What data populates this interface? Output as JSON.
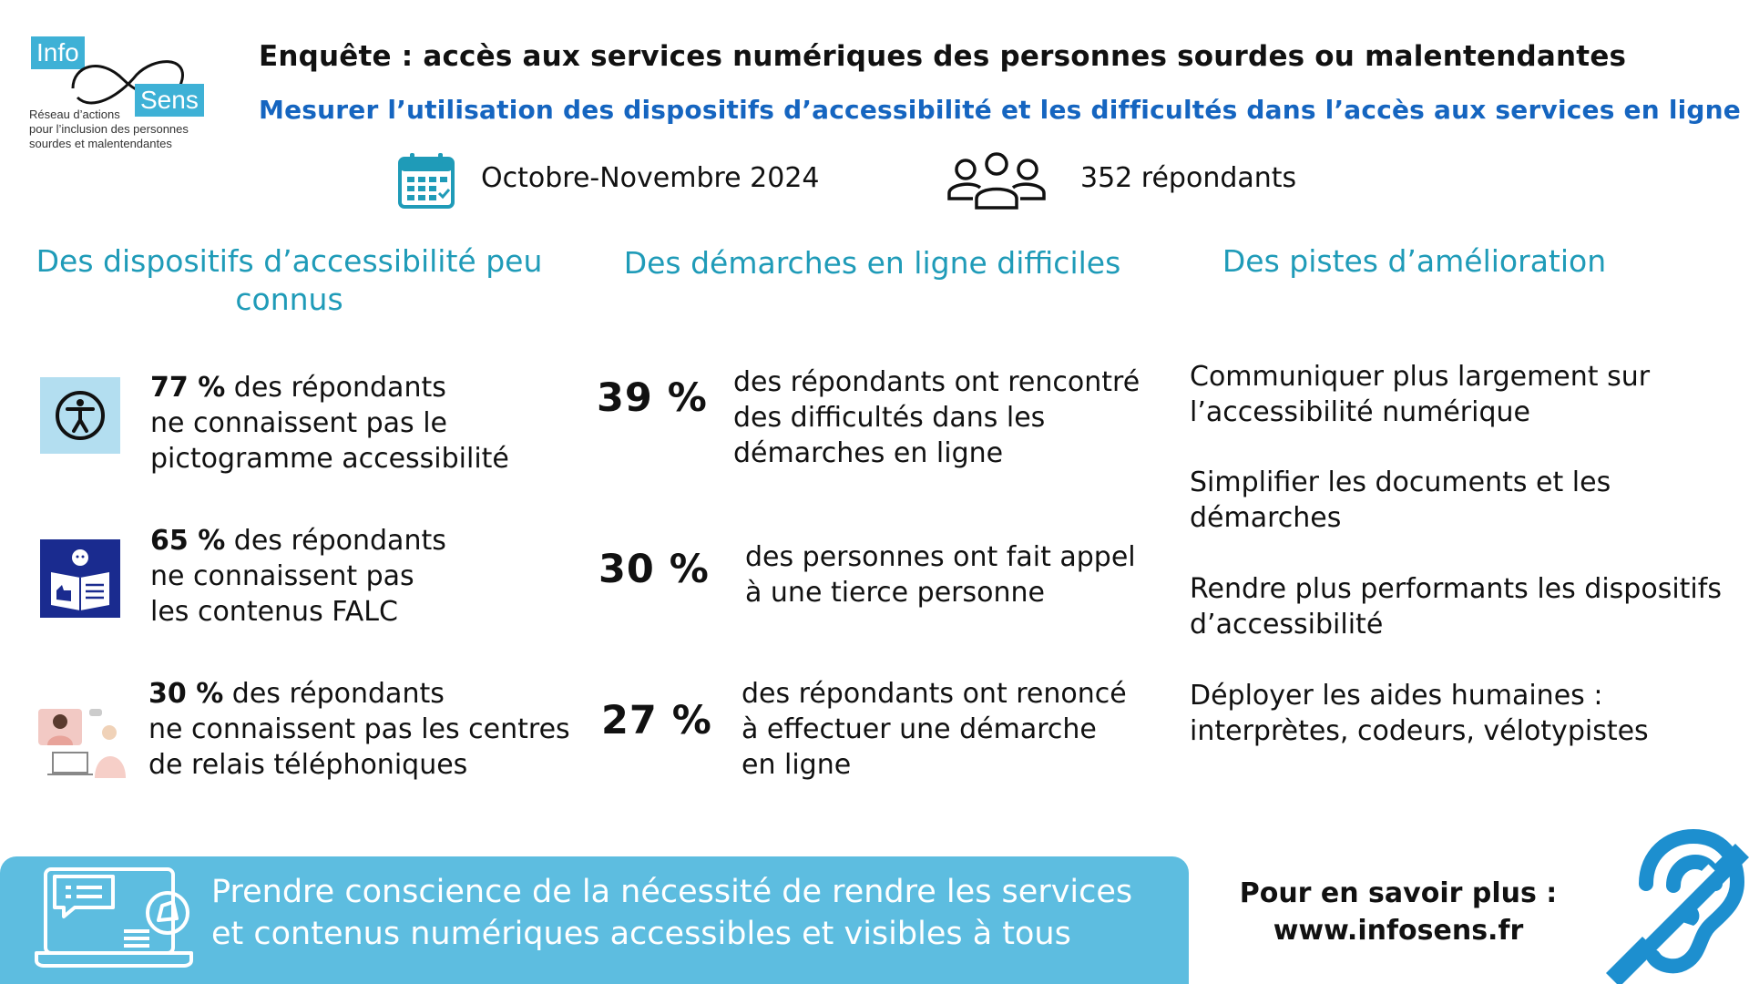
{
  "logo": {
    "info": "Info",
    "sens": "Sens",
    "tagline": [
      "Réseau d’actions",
      "pour l’inclusion des personnes",
      "sourdes et malentendantes"
    ]
  },
  "header": {
    "title": "Enquête : accès aux services numériques des personnes sourdes ou malentendantes",
    "subtitle": "Mesurer l’utilisation des dispositifs d’accessibilité et les difficultés dans l’accès aux services en ligne",
    "date": "Octobre-Novembre 2024",
    "respondents": "352 répondants"
  },
  "columns": {
    "c1": {
      "heading": [
        "Des dispositifs d’accessibilité peu",
        "connus"
      ],
      "items": [
        {
          "pct": "77 %",
          "lines": [
            " des répondants",
            "ne connaissent pas le",
            "pictogramme accessibilité"
          ]
        },
        {
          "pct": "65 %",
          "lines": [
            " des répondants",
            "ne connaissent pas",
            "les contenus FALC"
          ]
        },
        {
          "pct": "30 %",
          "lines": [
            " des répondants",
            "ne connaissent pas les centres",
            "de relais téléphoniques"
          ]
        }
      ]
    },
    "c2": {
      "heading": "Des démarches en ligne difficiles",
      "items": [
        {
          "pct": "39 %",
          "lines": [
            "des répondants ont rencontré",
            "des difficultés dans les",
            "démarches en ligne"
          ]
        },
        {
          "pct": "30 %",
          "lines": [
            "des personnes ont fait appel",
            "à une tierce personne"
          ]
        },
        {
          "pct": "27 %",
          "lines": [
            "des répondants ont renoncé",
            "à effectuer une démarche",
            "en ligne"
          ]
        }
      ]
    },
    "c3": {
      "heading": "Des pistes d’amélioration",
      "items": [
        [
          "Communiquer plus largement sur",
          "l’accessibilité numérique"
        ],
        [
          "Simplifier les documents et les",
          "démarches"
        ],
        [
          "Rendre plus performants les dispositifs",
          "d’accessibilité"
        ],
        [
          "Déployer les aides humaines :",
          "interprètes, codeurs, vélotypistes"
        ]
      ]
    }
  },
  "footer": {
    "banner": [
      "Prendre conscience de la nécessité de rendre les services",
      "et contenus numériques accessibles et visibles à tous"
    ],
    "more": [
      "Pour en savoir plus :",
      "www.infosens.fr"
    ]
  },
  "colors": {
    "accent": "#1f9bb8",
    "subtitle": "#1565c0",
    "banner": "#5dbde0",
    "ear": "#1d8fcf",
    "falc": "#1a2b8f"
  }
}
